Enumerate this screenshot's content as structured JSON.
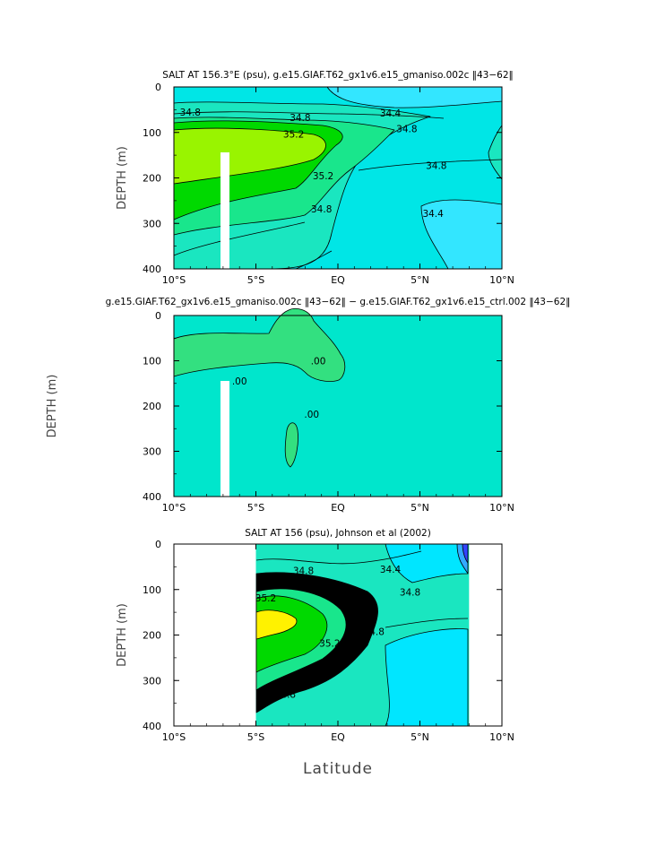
{
  "chart_data": [
    {
      "type": "contour",
      "title": "SALT AT 156.3°E (psu), g.e15.GIAF.T62_gx1v6.e15_gmaniso.002c ‖43−62‖",
      "ylabel": "DEPTH (m)",
      "xlabel": "",
      "x_ticks": [
        "10°S",
        "5°S",
        "EQ",
        "5°N",
        "10°N"
      ],
      "x_range": [
        -10,
        10
      ],
      "y_ticks": [
        "0",
        "100",
        "200",
        "300",
        "400"
      ],
      "y_range": [
        0,
        400
      ],
      "contour_labels": [
        {
          "text": "34.8",
          "x": -9.0,
          "y": 55
        },
        {
          "text": "34.8",
          "x": -2.3,
          "y": 67
        },
        {
          "text": "34.4",
          "x": 3.2,
          "y": 57
        },
        {
          "text": "35.2",
          "x": -2.7,
          "y": 103
        },
        {
          "text": "34.8",
          "x": 4.2,
          "y": 92
        },
        {
          "text": "34.8",
          "x": 6.0,
          "y": 172
        },
        {
          "text": "35.2",
          "x": -0.9,
          "y": 195
        },
        {
          "text": "34.8",
          "x": -1.0,
          "y": 268
        },
        {
          "text": "34.4",
          "x": 5.8,
          "y": 278
        }
      ],
      "colors": {
        "low": "#33e6ff",
        "mid": "#00e6e6",
        "base": "#1ae6c0",
        "high1": "#19e68c",
        "high2": "#00d900",
        "high3": "#99f400"
      }
    },
    {
      "type": "contour",
      "title": "g.e15.GIAF.T62_gx1v6.e15_gmaniso.002c ‖43−62‖ − g.e15.GIAF.T62_gx1v6.e15_ctrl.002 ‖43−62‖",
      "ylabel": "DEPTH (m)",
      "xlabel": "",
      "x_ticks": [
        "10°S",
        "5°S",
        "EQ",
        "5°N",
        "10°N"
      ],
      "x_range": [
        -10,
        10
      ],
      "y_ticks": [
        "0",
        "100",
        "200",
        "300",
        "400"
      ],
      "y_range": [
        0,
        400
      ],
      "contour_labels": [
        {
          "text": ".00",
          "x": -6.0,
          "y": 145
        },
        {
          "text": ".00",
          "x": -1.2,
          "y": 100
        },
        {
          "text": ".00",
          "x": -1.6,
          "y": 218
        }
      ],
      "colors": {
        "positive": "#33e080",
        "zero": "#00e6cc"
      }
    },
    {
      "type": "contour",
      "title": "SALT AT 156 (psu), Johnson et al (2002)",
      "ylabel": "DEPTH (m)",
      "xlabel": "Latitude",
      "x_ticks": [
        "10°S",
        "5°S",
        "EQ",
        "5°N",
        "10°N"
      ],
      "x_range": [
        -10,
        10
      ],
      "y_ticks": [
        "0",
        "100",
        "200",
        "300",
        "400"
      ],
      "y_range": [
        0,
        400
      ],
      "data_extent_x": [
        -5,
        8
      ],
      "contour_labels": [
        {
          "text": "34.8",
          "x": -2.1,
          "y": 58
        },
        {
          "text": "34.4",
          "x": 3.2,
          "y": 55
        },
        {
          "text": "35.2",
          "x": -4.4,
          "y": 118
        },
        {
          "text": "34.8",
          "x": 4.4,
          "y": 105
        },
        {
          "text": "35.2",
          "x": -0.5,
          "y": 218
        },
        {
          "text": "34.8",
          "x": 2.2,
          "y": 192
        },
        {
          "text": "34.8",
          "x": -3.2,
          "y": 330
        }
      ],
      "colors": {
        "low": "#00e6ff",
        "mid": "#1ae6c0",
        "high1": "#19e68c",
        "high2": "#00d900",
        "high3": "#fff200",
        "deep_low": "#3344ff"
      }
    }
  ]
}
